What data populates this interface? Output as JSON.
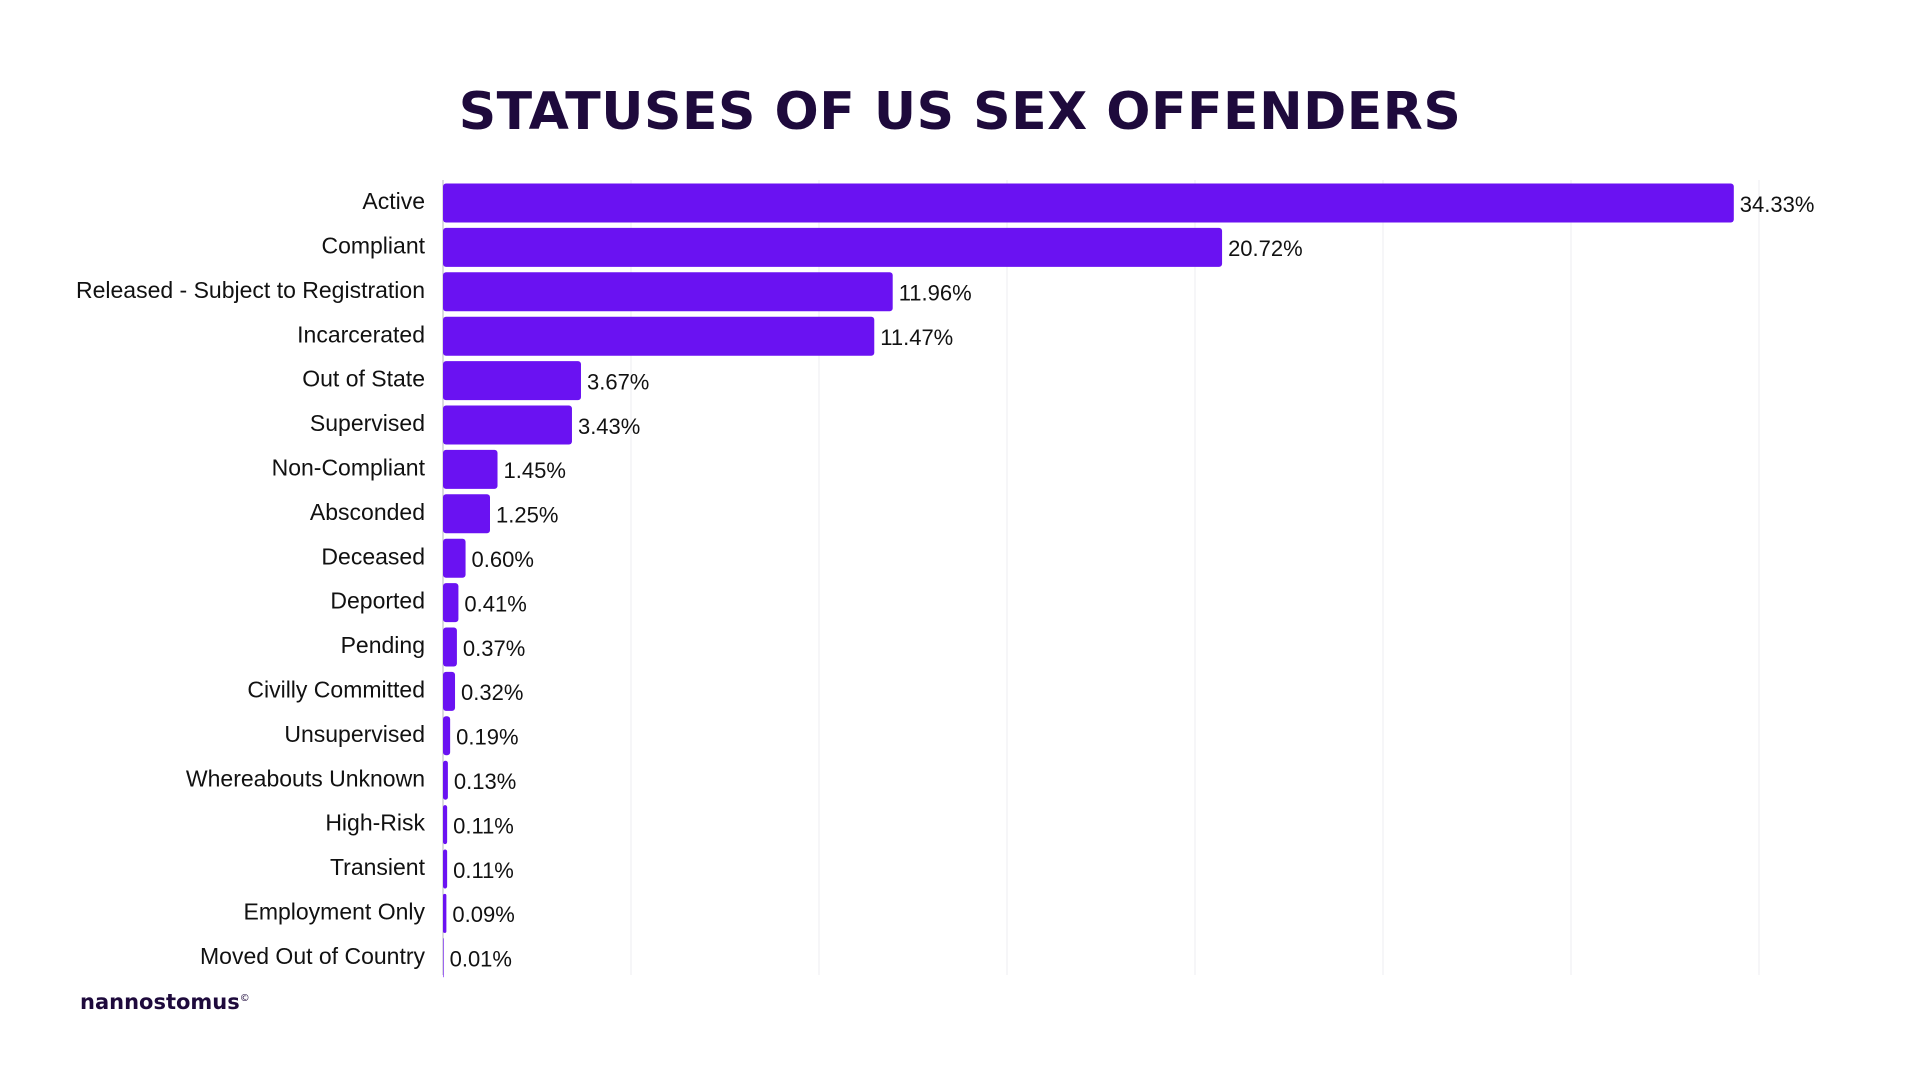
{
  "page": {
    "brand": "nannostomus",
    "brand_mark": "©"
  },
  "chart_data": {
    "type": "bar",
    "orientation": "horizontal",
    "title": "STATUSES OF US SEX OFFENDERS",
    "xlabel": "",
    "ylabel": "",
    "xlim": [
      0,
      35
    ],
    "grid": true,
    "legend": "none",
    "bar_color": "#6a12f2",
    "title_color": "#1e0a3c",
    "categories": [
      "Active",
      "Compliant",
      "Released - Subject to Registration",
      "Incarcerated",
      "Out of State",
      "Supervised",
      "Non-Compliant",
      "Absconded",
      "Deceased",
      "Deported",
      "Pending",
      "Civilly Committed",
      "Unsupervised",
      "Whereabouts Unknown",
      "High-Risk",
      "Transient",
      "Employment Only",
      "Moved Out of Country"
    ],
    "values": [
      34.33,
      20.72,
      11.96,
      11.47,
      3.67,
      3.43,
      1.45,
      1.25,
      0.6,
      0.41,
      0.37,
      0.32,
      0.19,
      0.13,
      0.11,
      0.11,
      0.09,
      0.01
    ],
    "value_labels": [
      "34.33%",
      "20.72%",
      "11.96%",
      "11.47%",
      "3.67%",
      "3.43%",
      "1.45%",
      "1.25%",
      "0.60%",
      "0.41%",
      "0.37%",
      "0.32%",
      "0.19%",
      "0.13%",
      "0.11%",
      "0.11%",
      "0.09%",
      "0.01%"
    ]
  }
}
